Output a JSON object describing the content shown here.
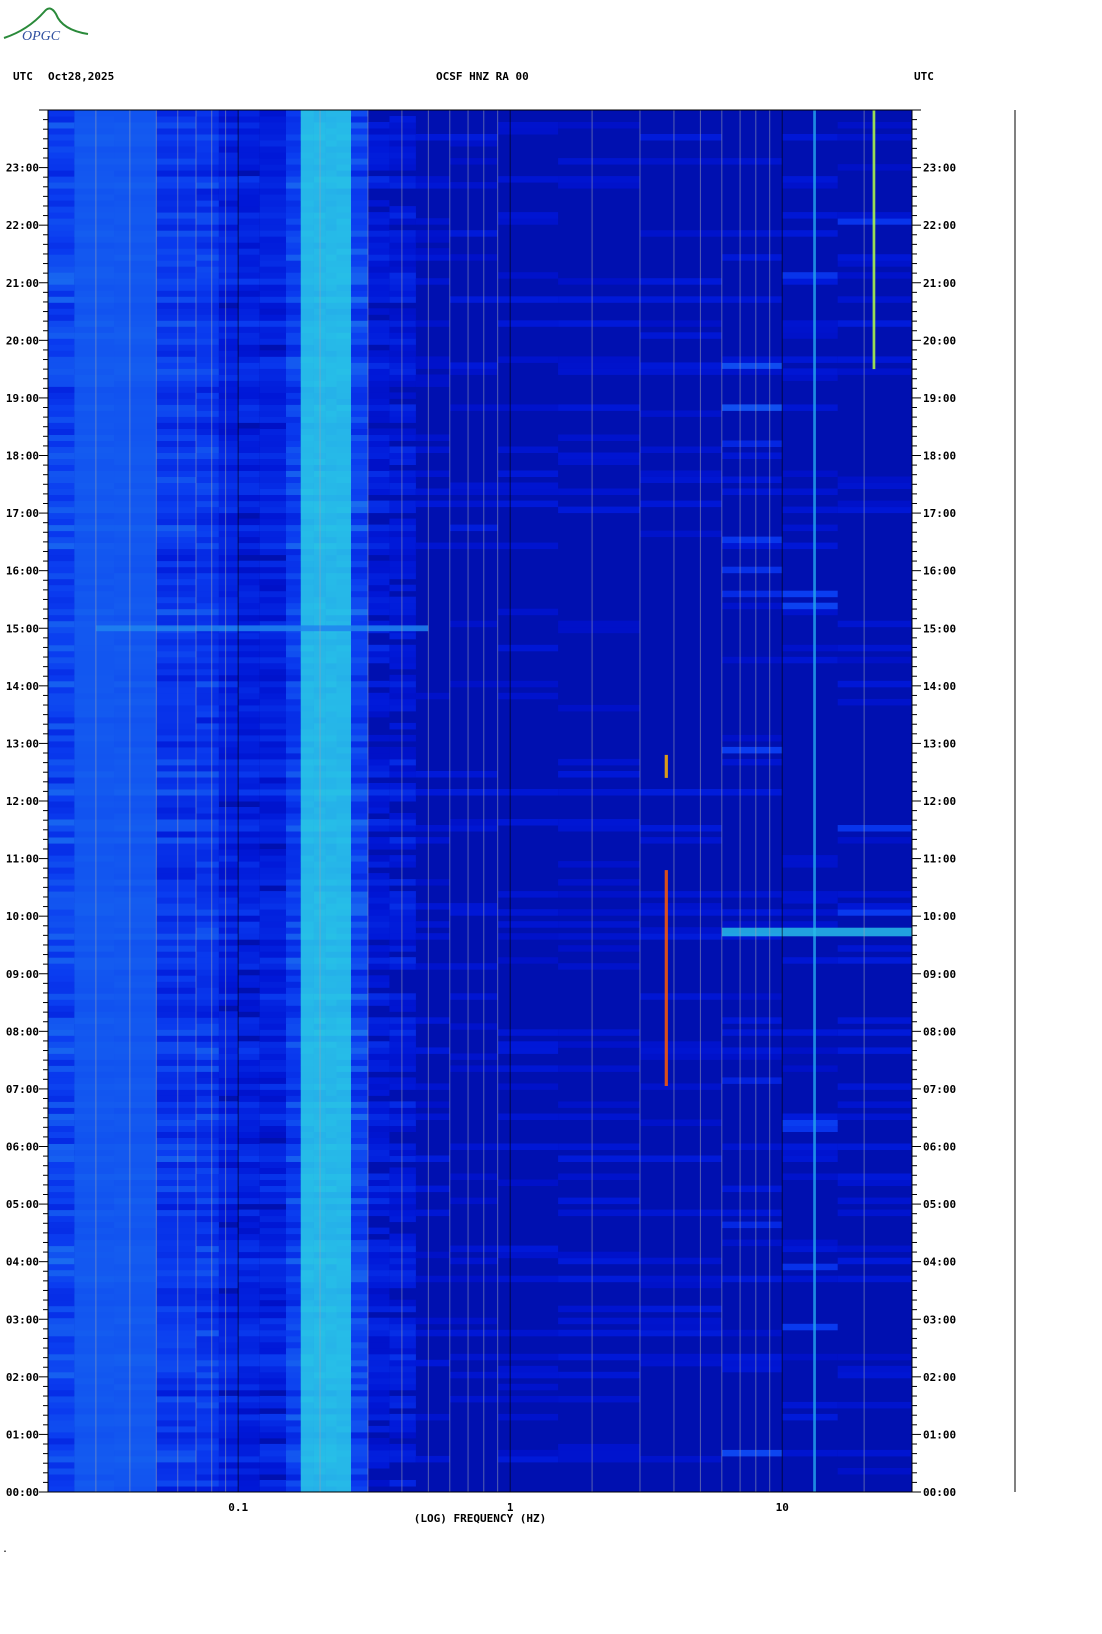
{
  "header": {
    "left_zone": "UTC",
    "date": "Oct28,2025",
    "station": "OCSF HNZ RA 00",
    "right_zone": "UTC"
  },
  "logo": {
    "text": "OPGC"
  },
  "footer_mark": ".",
  "chart_data": {
    "type": "heatmap",
    "title": "OCSF HNZ RA 00",
    "xlabel": "(LOG) FREQUENCY (HZ)",
    "ylabel": "UTC",
    "x_scale": "log",
    "xlim": [
      0.02,
      30
    ],
    "ylim_hours": [
      0,
      24
    ],
    "x_tick_labels": [
      {
        "value": 0.1,
        "label": "0.1"
      },
      {
        "value": 1,
        "label": "1"
      },
      {
        "value": 10,
        "label": "10"
      }
    ],
    "y_tick_labels": [
      "00:00",
      "01:00",
      "02:00",
      "03:00",
      "04:00",
      "05:00",
      "06:00",
      "07:00",
      "08:00",
      "09:00",
      "10:00",
      "11:00",
      "12:00",
      "13:00",
      "14:00",
      "15:00",
      "16:00",
      "17:00",
      "18:00",
      "19:00",
      "20:00",
      "21:00",
      "22:00",
      "23:00"
    ],
    "colormap": [
      "#0000a0",
      "#0018d8",
      "#0a3cf0",
      "#1e78f0",
      "#28c8e6",
      "#40ffb0",
      "#ffff00",
      "#ff0000"
    ],
    "background_color": "#0010b0",
    "grid": true,
    "features": [
      {
        "name": "microseism band",
        "freq_hz": [
          0.17,
          0.26
        ],
        "time_h": [
          0,
          24
        ],
        "level": 0.55
      },
      {
        "name": "low-frequency band",
        "freq_hz": [
          0.025,
          0.05
        ],
        "time_h": [
          0,
          24
        ],
        "level": 0.35
      },
      {
        "name": "narrow-band line",
        "freq_hz": [
          3.7,
          3.8
        ],
        "time_h": [
          7.05,
          10.8
        ],
        "level": 0.95
      },
      {
        "name": "narrow-band line",
        "freq_hz": [
          3.7,
          3.8
        ],
        "time_h": [
          12.4,
          12.8
        ],
        "level": 0.9
      },
      {
        "name": "persistent line",
        "freq_hz": [
          21.5,
          22
        ],
        "time_h": [
          19.5,
          24
        ],
        "level": 0.8
      },
      {
        "name": "persistent line",
        "freq_hz": [
          13,
          13.3
        ],
        "time_h": [
          0,
          24
        ],
        "level": 0.5
      },
      {
        "name": "burst",
        "freq_hz": [
          6,
          30
        ],
        "time_h": [
          9.65,
          9.8
        ],
        "level": 0.55
      },
      {
        "name": "burst",
        "freq_hz": [
          0.03,
          0.5
        ],
        "time_h": [
          14.95,
          15.05
        ],
        "level": 0.45
      }
    ]
  }
}
